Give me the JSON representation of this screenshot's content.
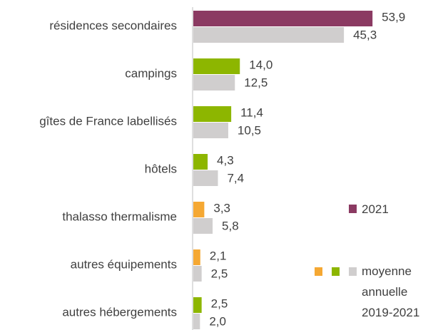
{
  "chart_data": {
    "type": "bar",
    "orientation": "horizontal",
    "categories": [
      "résidences secondaires",
      "campings",
      "gîtes de France labellisés",
      "hôtels",
      "thalasso thermalisme",
      "autres équipements",
      "autres hébergements"
    ],
    "series": [
      {
        "name": "2021",
        "color": "#8b3a62",
        "colors": [
          "#8b3a62",
          "#8db600",
          "#8db600",
          "#8db600",
          "#f5a833",
          "#f5a833",
          "#8db600"
        ],
        "values": [
          53.9,
          14.0,
          11.4,
          4.3,
          3.3,
          2.1,
          2.5
        ],
        "value_labels": [
          "53,9",
          "14,0",
          "11,4",
          "4,3",
          "3,3",
          "2,1",
          "2,5"
        ]
      },
      {
        "name": "moyenne annuelle 2019-2021",
        "color": "#d0cece",
        "values": [
          45.3,
          12.5,
          10.5,
          7.4,
          5.8,
          2.5,
          2.0
        ],
        "value_labels": [
          "45,3",
          "12,5",
          "10,5",
          "7,4",
          "5,8",
          "2,5",
          "2,0"
        ]
      }
    ]
  }
}
